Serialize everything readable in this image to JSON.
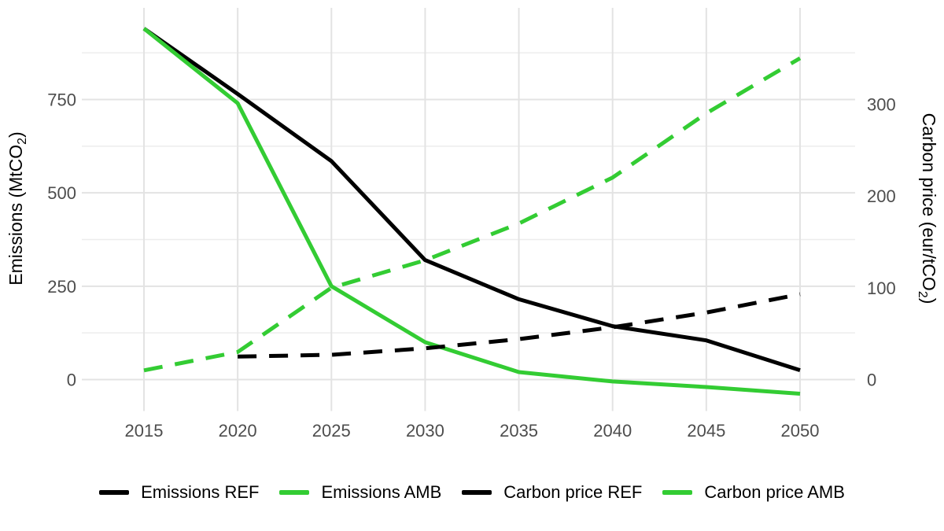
{
  "chart_data": {
    "type": "line",
    "title": "",
    "x": [
      2015,
      2020,
      2025,
      2030,
      2035,
      2040,
      2045,
      2050
    ],
    "x_ticks": [
      2015,
      2020,
      2025,
      2030,
      2035,
      2040,
      2045,
      2050
    ],
    "left_axis": {
      "title_pre": "Emissions  (MtCO",
      "title_sub": "2",
      "title_post": ")",
      "ticks": [
        0,
        250,
        500,
        750
      ],
      "minor_ticks": [
        125,
        375,
        625,
        875
      ],
      "range": [
        -87,
        994
      ]
    },
    "right_axis": {
      "title_pre": "Carbon price  (eur/tCO",
      "title_sub": "2",
      "title_post": ")",
      "ticks": [
        0,
        100,
        200,
        300
      ],
      "range": [
        -37,
        423
      ]
    },
    "series": [
      {
        "name": "Emissions REF",
        "axis": "left",
        "color": "#000000",
        "dash": false,
        "values": [
          940,
          765,
          585,
          320,
          215,
          143,
          105,
          25
        ]
      },
      {
        "name": "Emissions AMB",
        "axis": "left",
        "color": "#33cc33",
        "dash": false,
        "values": [
          940,
          740,
          250,
          100,
          20,
          -5,
          -20,
          -38
        ]
      },
      {
        "name": "Carbon price REF",
        "axis": "right",
        "color": "#000000",
        "dash": true,
        "values": [
          null,
          25,
          27,
          34,
          44,
          57,
          73,
          93
        ]
      },
      {
        "name": "Carbon price AMB",
        "axis": "right",
        "color": "#33cc33",
        "dash": true,
        "values": [
          10,
          30,
          100,
          130,
          170,
          220,
          290,
          350
        ]
      }
    ],
    "legend_position": "bottom",
    "grid": true
  },
  "colors": {
    "background": "#ffffff",
    "grid_major": "#e3e3e3",
    "grid_minor": "#ededed",
    "tick_text": "#4d4d4d",
    "axis_title_text": "#000000"
  }
}
